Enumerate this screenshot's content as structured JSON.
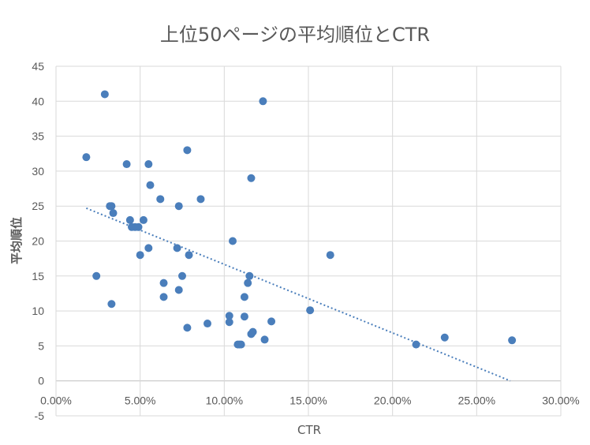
{
  "chart_data": {
    "type": "scatter",
    "title": "上位50ページの平均順位とCTR",
    "xlabel": "CTR",
    "ylabel": "平均順位",
    "xlim": [
      0,
      0.3
    ],
    "ylim": [
      -5,
      45
    ],
    "x_ticks": [
      "0.00%",
      "5.00%",
      "10.00%",
      "15.00%",
      "20.00%",
      "25.00%",
      "30.00%"
    ],
    "y_ticks": [
      "-5",
      "0",
      "5",
      "10",
      "15",
      "20",
      "25",
      "30",
      "35",
      "40",
      "45"
    ],
    "grid": true,
    "legend": "none",
    "point_color": "#4a7ebb",
    "trendline": {
      "type": "linear",
      "style": "dotted",
      "from": [
        0.018,
        24.7
      ],
      "to": [
        0.27,
        0
      ]
    },
    "points": [
      [
        0.018,
        32
      ],
      [
        0.029,
        41
      ],
      [
        0.024,
        15
      ],
      [
        0.032,
        25
      ],
      [
        0.033,
        25
      ],
      [
        0.033,
        11
      ],
      [
        0.034,
        24
      ],
      [
        0.042,
        31
      ],
      [
        0.044,
        23
      ],
      [
        0.045,
        22
      ],
      [
        0.047,
        22
      ],
      [
        0.049,
        22
      ],
      [
        0.05,
        18
      ],
      [
        0.052,
        23
      ],
      [
        0.055,
        31
      ],
      [
        0.055,
        19
      ],
      [
        0.056,
        28
      ],
      [
        0.062,
        26
      ],
      [
        0.064,
        14
      ],
      [
        0.064,
        12
      ],
      [
        0.072,
        19
      ],
      [
        0.073,
        25
      ],
      [
        0.073,
        13
      ],
      [
        0.075,
        15
      ],
      [
        0.078,
        33
      ],
      [
        0.078,
        7.6
      ],
      [
        0.079,
        18
      ],
      [
        0.086,
        26
      ],
      [
        0.09,
        8.2
      ],
      [
        0.103,
        9.3
      ],
      [
        0.103,
        8.4
      ],
      [
        0.105,
        20
      ],
      [
        0.108,
        5.2
      ],
      [
        0.109,
        5.2
      ],
      [
        0.11,
        5.2
      ],
      [
        0.112,
        12
      ],
      [
        0.112,
        9.2
      ],
      [
        0.114,
        14
      ],
      [
        0.115,
        15
      ],
      [
        0.116,
        29
      ],
      [
        0.116,
        6.7
      ],
      [
        0.117,
        7.0
      ],
      [
        0.123,
        40
      ],
      [
        0.124,
        5.9
      ],
      [
        0.128,
        8.5
      ],
      [
        0.151,
        10.1
      ],
      [
        0.163,
        18
      ],
      [
        0.214,
        5.2
      ],
      [
        0.231,
        6.2
      ],
      [
        0.271,
        5.8
      ]
    ]
  }
}
